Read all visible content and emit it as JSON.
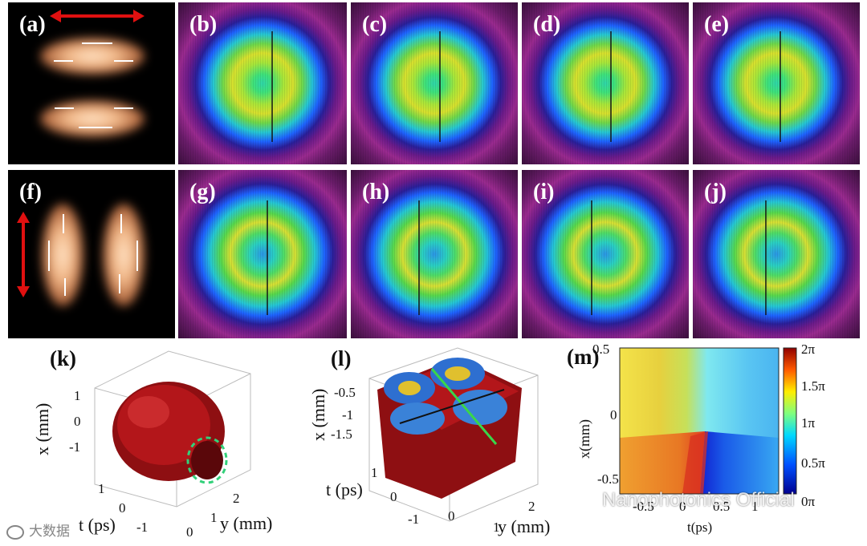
{
  "figure": {
    "panel_labels": [
      "(a)",
      "(b)",
      "(c)",
      "(d)",
      "(e)",
      "(f)",
      "(g)",
      "(h)",
      "(i)",
      "(j)",
      "(k)",
      "(l)",
      "(m)"
    ],
    "plot_k": {
      "xlabel": "x (mm)",
      "ylabel": "y (mm)",
      "tlabel": "t (ps)",
      "x_ticks": [
        "1",
        "0",
        "-1"
      ],
      "y_ticks": [
        "0",
        "1",
        "2"
      ],
      "t_ticks": [
        "1",
        "0",
        "-1"
      ]
    },
    "plot_l": {
      "xlabel": "x (mm)",
      "ylabel": "y (mm)",
      "tlabel": "t (ps)",
      "x_ticks": [
        "-0.5",
        "-1",
        "-1.5"
      ],
      "y_ticks": [
        "0",
        "1",
        "2"
      ],
      "t_ticks": [
        "1",
        "0",
        "-1"
      ]
    },
    "plot_m": {
      "xlabel": "t(ps)",
      "ylabel": "x(mm)",
      "x_ticks": [
        "-0.5",
        "0",
        "0.5",
        "1"
      ],
      "y_ticks": [
        "0.5",
        "0",
        "-0.5"
      ],
      "colorbar_ticks": [
        "2π",
        "1.5π",
        "1π",
        "0.5π",
        "0π"
      ]
    }
  },
  "watermarks": {
    "main": "Nanophotonics Official",
    "corner": "大数据"
  },
  "chart_data": {
    "type": "heatmap",
    "title": "(m)",
    "xlabel": "t(ps)",
    "ylabel": "x(mm)",
    "xlim": [
      -0.9,
      1.4
    ],
    "ylim": [
      -0.6,
      0.5
    ],
    "colorbar": {
      "min_label": "0π",
      "max_label": "2π",
      "ticks": [
        "0.5π",
        "1π",
        "1.5π",
        "2π"
      ]
    },
    "description_values": {
      "phase_singularity_t_ps": 0.2,
      "phase_singularity_x_mm": -0.15
    }
  }
}
